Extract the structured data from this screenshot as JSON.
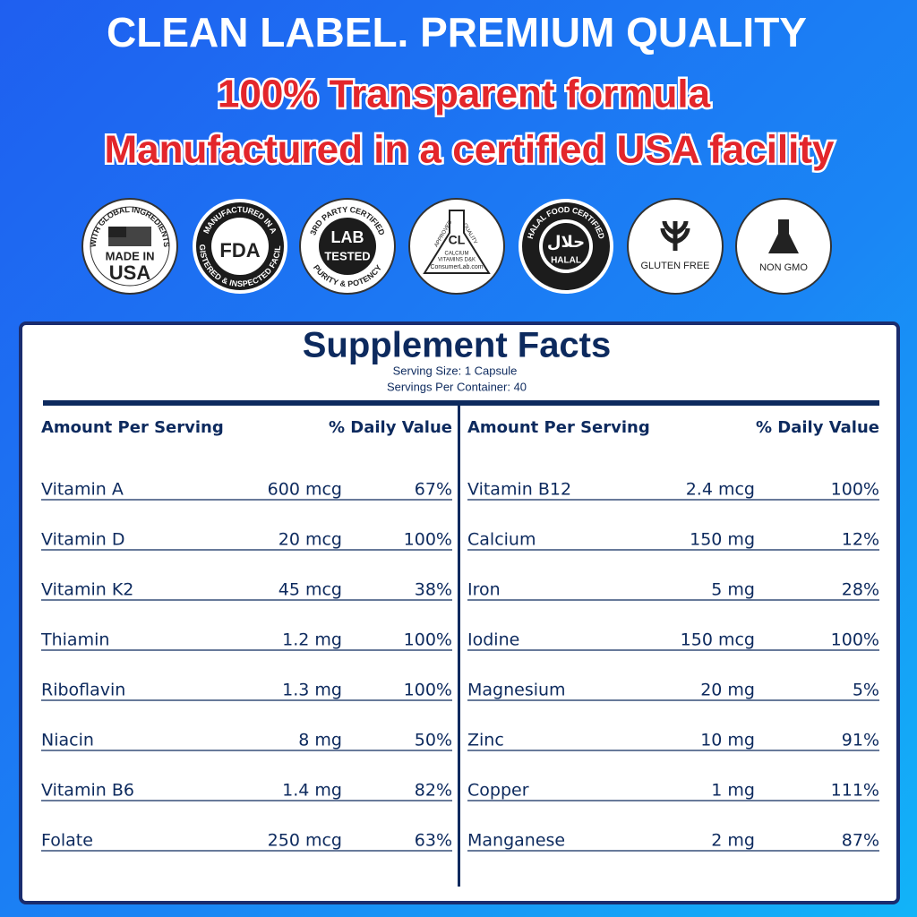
{
  "header": {
    "title": "CLEAN LABEL. PREMIUM QUALITY",
    "line1": "100% Transparent formula",
    "line2": "Manufactured in a certified USA facility"
  },
  "badges": {
    "usa": {
      "ring": "WITH GLOBAL INGREDIENTS",
      "line1": "MADE IN",
      "line2": "USA"
    },
    "fda": {
      "ring_top": "MANUFACTURED IN A",
      "label": "FDA",
      "ring_bottom": "REGISTERED & INSPECTED FACILITY"
    },
    "lab": {
      "ring_top": "3RD PARTY CERTIFIED",
      "line1": "LAB",
      "line2": "TESTED",
      "ring_bottom": "PURITY & POTENCY"
    },
    "consumerlab": {
      "left": "APPROVED",
      "right": "QUALITY",
      "logo": "CL",
      "line1": "CALCIUM",
      "line2": "VITAMINS D&K",
      "site": "ConsumerLab.com"
    },
    "halal": {
      "ring": "HALAL FOOD CERTIFIED",
      "arabic": "حلال",
      "label": "HALAL"
    },
    "gluten": {
      "label": "GLUTEN FREE"
    },
    "gmo": {
      "label": "NON GMO"
    }
  },
  "facts": {
    "title": "Supplement Facts",
    "serving_size": "Serving Size: 1 Capsule",
    "servings": "Servings Per Container: 40",
    "left": {
      "header": [
        "Amount Per Serving",
        "% Daily Value"
      ],
      "rows": [
        [
          "Vitamin A",
          "600 mcg",
          "67%"
        ],
        [
          "Vitamin D",
          "20 mcg",
          "100%"
        ],
        [
          "Vitamin K2",
          "45 mcg",
          "38%"
        ],
        [
          "Thiamin",
          "1.2 mg",
          "100%"
        ],
        [
          "Riboflavin",
          "1.3 mg",
          "100%"
        ],
        [
          "Niacin",
          "8 mg",
          "50%"
        ],
        [
          "Vitamin B6",
          "1.4 mg",
          "82%"
        ],
        [
          "Folate",
          "250 mcg",
          "63%"
        ]
      ]
    },
    "right": {
      "header": [
        "Amount Per Serving",
        "% Daily Value"
      ],
      "rows": [
        [
          "Vitamin B12",
          "2.4 mcg",
          "100%"
        ],
        [
          "Calcium",
          "150 mg",
          "12%"
        ],
        [
          "Iron",
          "5 mg",
          "28%"
        ],
        [
          "Iodine",
          "150 mcg",
          "100%"
        ],
        [
          "Magnesium",
          "20 mg",
          "5%"
        ],
        [
          "Zinc",
          "10 mg",
          "91%"
        ],
        [
          "Copper",
          "1 mg",
          "111%"
        ],
        [
          "Manganese",
          "2 mg",
          "87%"
        ]
      ]
    }
  }
}
